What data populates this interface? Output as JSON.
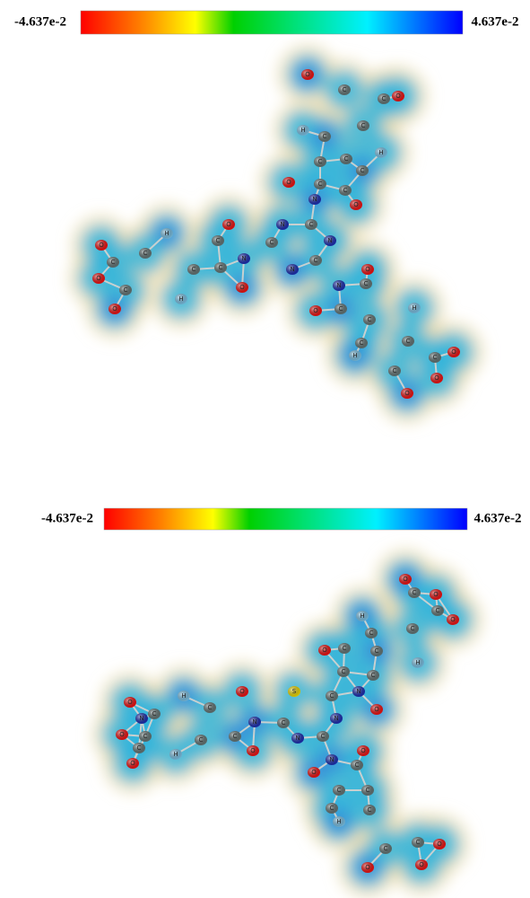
{
  "panels": [
    {
      "colorbar": {
        "min_label": "-4.637e-2",
        "max_label": "4.637e-2"
      },
      "atoms": [
        "O",
        "C",
        "C",
        "O",
        "H",
        "C",
        "C",
        "H",
        "C",
        "C",
        "C",
        "O",
        "C",
        "C",
        "O",
        "N",
        "N",
        "C",
        "C",
        "N",
        "N",
        "C",
        "N",
        "O",
        "C",
        "H",
        "O",
        "C",
        "C",
        "C",
        "O",
        "C",
        "O",
        "C",
        "H",
        "O",
        "N",
        "C",
        "O",
        "O",
        "C",
        "C",
        "H",
        "C",
        "C",
        "H",
        "C",
        "O",
        "C",
        "O",
        "O"
      ]
    },
    {
      "colorbar": {
        "min_label": "-4.637e-2",
        "max_label": "4.637e-2"
      },
      "atoms": [
        "O",
        "C",
        "O",
        "O",
        "C",
        "H",
        "C",
        "C",
        "O",
        "C",
        "C",
        "H",
        "C",
        "C",
        "N",
        "O",
        "S",
        "C",
        "N",
        "O",
        "H",
        "O",
        "C",
        "C",
        "N",
        "N",
        "C",
        "N",
        "C",
        "O",
        "N",
        "C",
        "O",
        "C",
        "C",
        "C",
        "O",
        "C",
        "H",
        "O",
        "O",
        "C",
        "C",
        "C",
        "C",
        "H",
        "C",
        "O",
        "C",
        "O",
        "O"
      ]
    }
  ]
}
